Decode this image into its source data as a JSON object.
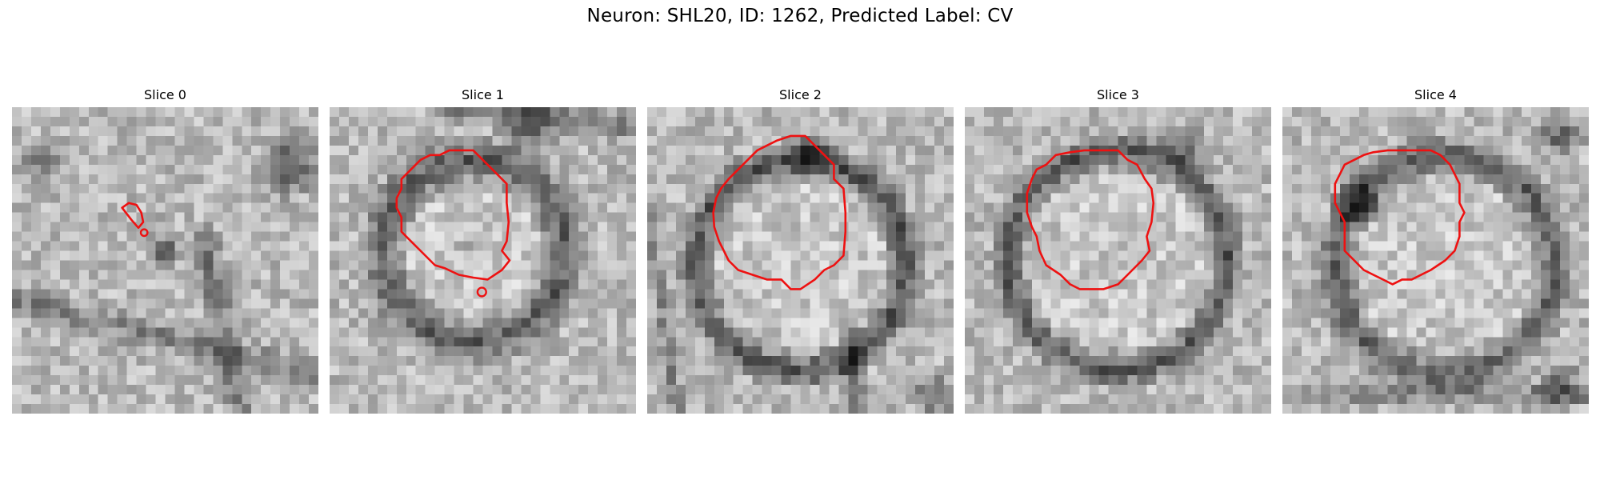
{
  "figure": {
    "title": "Neuron: SHL20, ID: 1262, Predicted Label: CV",
    "contour_color": "#ee1111",
    "panels": [
      {
        "title": "Slice 0"
      },
      {
        "title": "Slice 1"
      },
      {
        "title": "Slice 2"
      },
      {
        "title": "Slice 3"
      },
      {
        "title": "Slice 4"
      }
    ]
  }
}
